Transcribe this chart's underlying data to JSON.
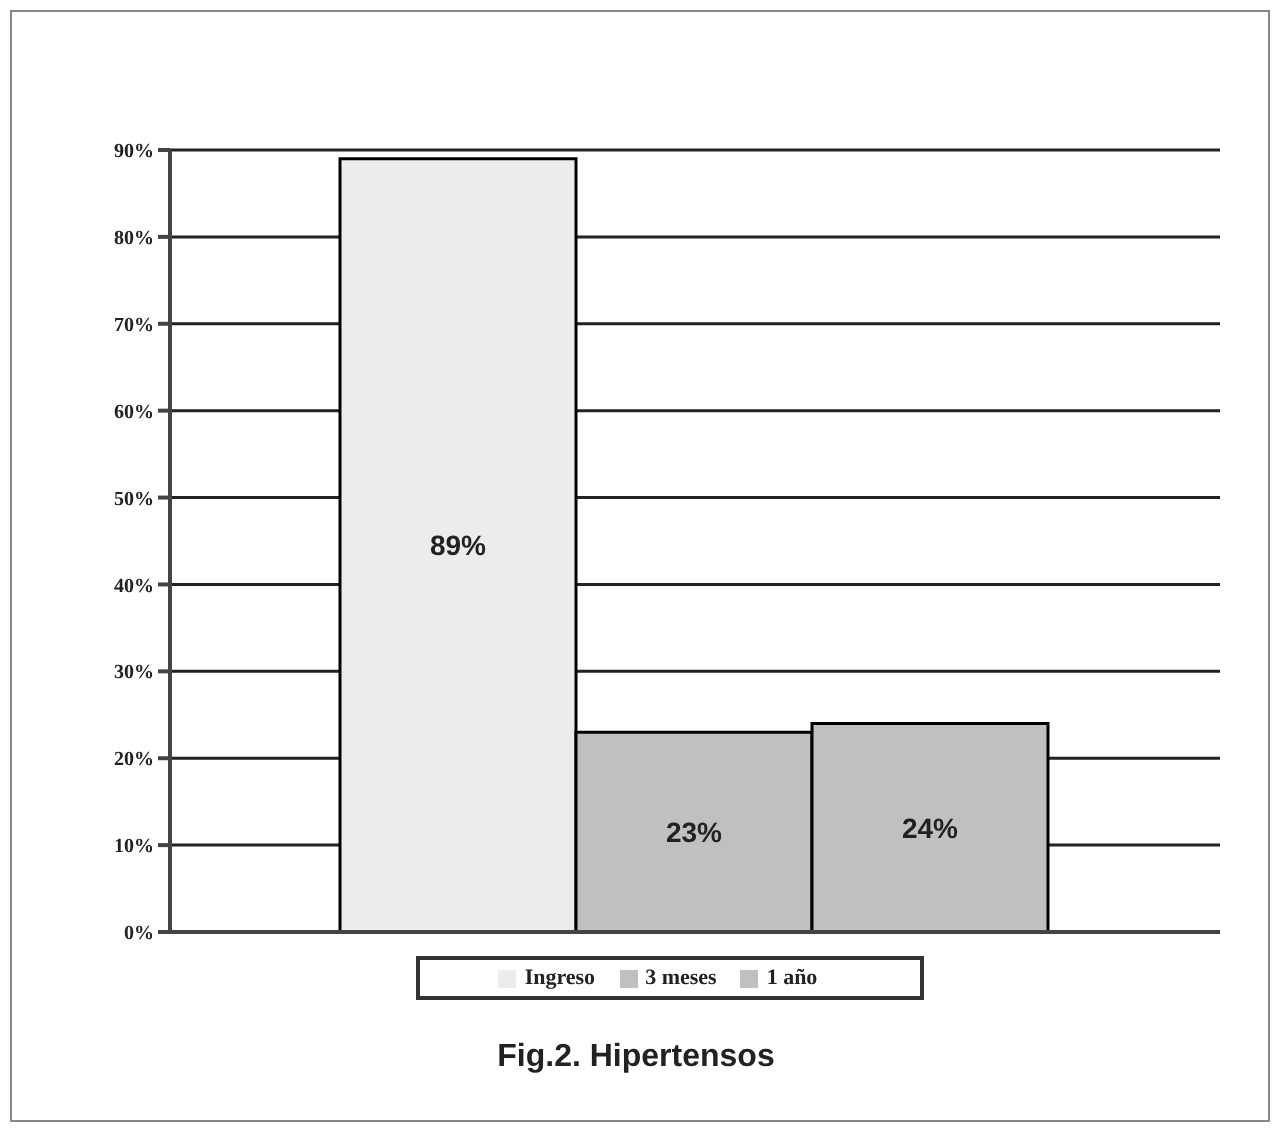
{
  "chart_data": {
    "type": "bar",
    "title": "Fig.2. Hipertensos",
    "categories": [
      null
    ],
    "series": [
      {
        "name": "Ingreso",
        "color": "#ececec",
        "values": [
          89
        ],
        "value_labels": [
          "89%"
        ]
      },
      {
        "name": "3 meses",
        "color": "#c0c0c0",
        "values": [
          23
        ],
        "value_labels": [
          "23%"
        ]
      },
      {
        "name": "1 año",
        "color": "#c0c0c0",
        "values": [
          24
        ],
        "value_labels": [
          "24%"
        ]
      }
    ],
    "ylim": [
      0,
      90
    ],
    "yticks": [
      {
        "value": 0,
        "label": "0%"
      },
      {
        "value": 10,
        "label": "10%"
      },
      {
        "value": 20,
        "label": "20%"
      },
      {
        "value": 30,
        "label": "30%"
      },
      {
        "value": 40,
        "label": "40%"
      },
      {
        "value": 50,
        "label": "50%"
      },
      {
        "value": 60,
        "label": "60%"
      },
      {
        "value": 70,
        "label": "70%"
      },
      {
        "value": 80,
        "label": "80%"
      },
      {
        "value": 90,
        "label": "90%"
      }
    ],
    "grid": "y",
    "legend": "bottom"
  }
}
